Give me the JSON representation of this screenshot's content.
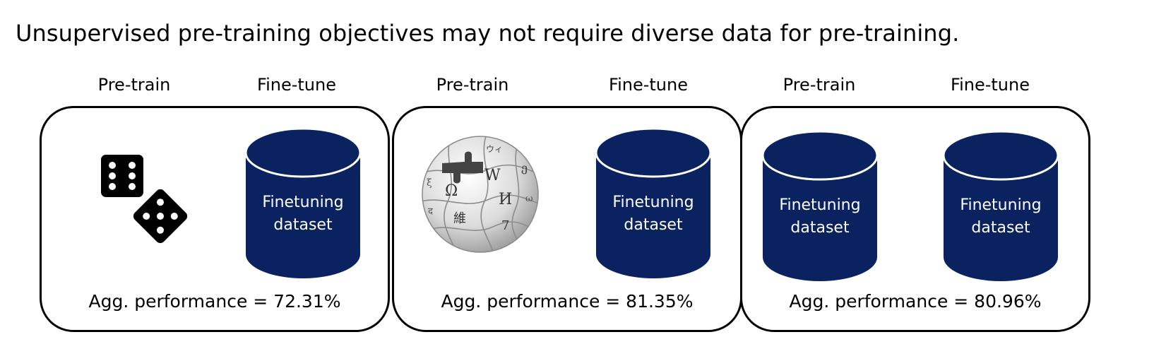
{
  "title": "Unsupervised pre-training objectives may not require diverse data for pre-training.",
  "colors": {
    "cylinder_fill": "#0b2260",
    "cylinder_rim": "#ffffff",
    "panel_border": "#000000"
  },
  "panels": [
    {
      "pretrain_label": "Pre-train",
      "finetune_label": "Fine-tune",
      "pretrain_icon": "dice-icon",
      "finetune_dataset": [
        "Finetuning",
        "dataset"
      ],
      "performance": "Agg. performance = 72.31%"
    },
    {
      "pretrain_label": "Pre-train",
      "finetune_label": "Fine-tune",
      "pretrain_icon": "wikipedia-globe-icon",
      "finetune_dataset": [
        "Finetuning",
        "dataset"
      ],
      "performance": "Agg. performance = 81.35%"
    },
    {
      "pretrain_label": "Pre-train",
      "finetune_label": "Fine-tune",
      "pretrain_dataset": [
        "Finetuning",
        "dataset"
      ],
      "finetune_dataset": [
        "Finetuning",
        "dataset"
      ],
      "performance": "Agg. performance = 80.96%"
    }
  ]
}
